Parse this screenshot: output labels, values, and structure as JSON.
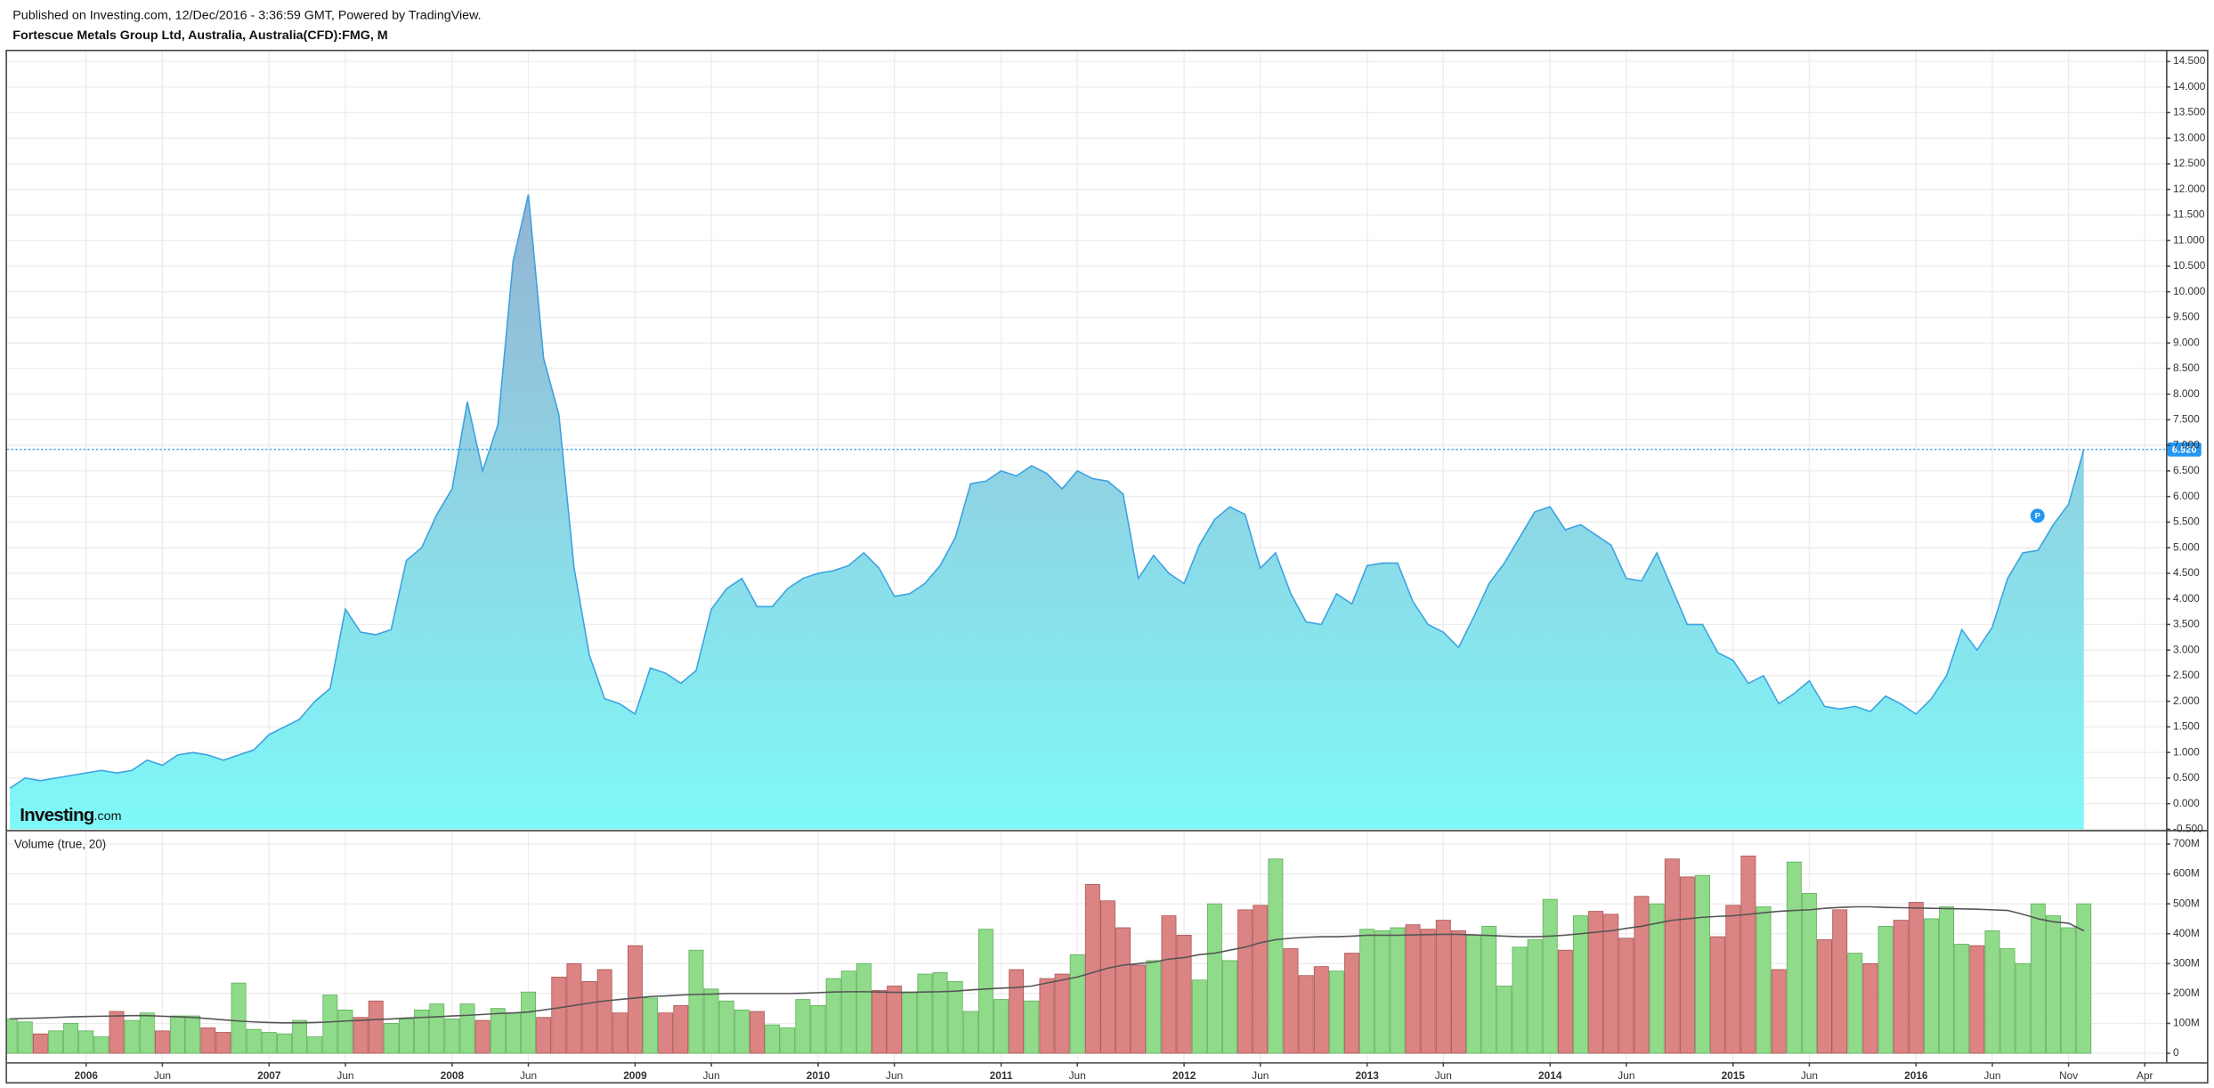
{
  "header": {
    "publisher": "Published on Investing.com, 12/Dec/2016 - 3:36:59 GMT, Powered by TradingView.",
    "title": "Fortescue Metals Group Ltd, Australia, Australia(CFD):FMG, M"
  },
  "chart_data": [
    {
      "type": "area",
      "categories": [
        null,
        null,
        null,
        null,
        null,
        "2006",
        null,
        null,
        null,
        null,
        "Jun",
        null,
        null,
        null,
        null,
        null,
        null,
        "2007",
        null,
        null,
        null,
        null,
        "Jun",
        null,
        null,
        null,
        null,
        null,
        null,
        "2008",
        null,
        null,
        null,
        null,
        "Jun",
        null,
        null,
        null,
        null,
        null,
        null,
        "2009",
        null,
        null,
        null,
        null,
        "Jun",
        null,
        null,
        null,
        null,
        null,
        null,
        "2010",
        null,
        null,
        null,
        null,
        "Jun",
        null,
        null,
        null,
        null,
        null,
        null,
        "2011",
        null,
        null,
        null,
        null,
        "Jun",
        null,
        null,
        null,
        null,
        null,
        null,
        "2012",
        null,
        null,
        null,
        null,
        "Jun",
        null,
        null,
        null,
        null,
        null,
        null,
        "2013",
        null,
        null,
        null,
        null,
        "Jun",
        null,
        null,
        null,
        null,
        null,
        null,
        "2014",
        null,
        null,
        null,
        null,
        "Jun",
        null,
        null,
        null,
        null,
        null,
        null,
        "2015",
        null,
        null,
        null,
        null,
        "Jun",
        null,
        null,
        null,
        null,
        null,
        null,
        "2016",
        null,
        null,
        null,
        null,
        "Jun",
        null,
        null,
        null,
        null,
        "Nov",
        null,
        null,
        null,
        null,
        "Apr"
      ],
      "values": [
        0.3,
        0.5,
        0.45,
        0.5,
        0.55,
        0.6,
        0.65,
        0.6,
        0.65,
        0.85,
        0.75,
        0.95,
        1.0,
        0.95,
        0.85,
        0.95,
        1.05,
        1.35,
        1.5,
        1.65,
        2.0,
        2.25,
        3.8,
        3.35,
        3.3,
        3.4,
        4.75,
        5.0,
        5.65,
        6.15,
        7.85,
        6.5,
        7.4,
        10.6,
        11.9,
        8.7,
        7.6,
        4.6,
        2.9,
        2.05,
        1.95,
        1.75,
        2.65,
        2.55,
        2.35,
        2.6,
        3.8,
        4.2,
        4.4,
        3.85,
        3.85,
        4.2,
        4.4,
        4.5,
        4.55,
        4.65,
        4.9,
        4.6,
        4.05,
        4.1,
        4.3,
        4.65,
        5.2,
        6.25,
        6.3,
        6.5,
        6.4,
        6.6,
        6.45,
        6.15,
        6.5,
        6.35,
        6.3,
        6.05,
        4.4,
        4.85,
        4.5,
        4.3,
        5.05,
        5.55,
        5.8,
        5.65,
        4.6,
        4.9,
        4.1,
        3.55,
        3.5,
        4.1,
        3.9,
        4.65,
        4.7,
        4.7,
        3.95,
        3.5,
        3.35,
        3.05,
        3.65,
        4.3,
        4.7,
        5.2,
        5.7,
        5.8,
        5.35,
        5.45,
        5.25,
        5.05,
        4.4,
        4.35,
        4.9,
        4.2,
        3.5,
        3.5,
        2.95,
        2.8,
        2.35,
        2.5,
        1.95,
        2.15,
        2.4,
        1.9,
        1.85,
        1.9,
        1.8,
        2.1,
        1.95,
        1.75,
        2.05,
        2.5,
        3.4,
        3.0,
        3.45,
        4.4,
        4.9,
        4.95,
        5.45,
        5.85,
        6.92,
        null,
        null,
        null,
        null
      ],
      "color": "#3ba3e0",
      "last_value_label": "6.920",
      "last_value_color": "#2196f3",
      "marker": "P",
      "watermark": {
        "brand": "Investing",
        "suffix": ".com"
      },
      "ylim": [
        -0.5,
        14.7
      ],
      "yticks": [
        {
          "value": -0.5,
          "label": "-0.500"
        },
        {
          "value": 0,
          "label": "0.000"
        },
        {
          "value": 0.5,
          "label": "0.500"
        },
        {
          "value": 1,
          "label": "1.000"
        },
        {
          "value": 1.5,
          "label": "1.500"
        },
        {
          "value": 2,
          "label": "2.000"
        },
        {
          "value": 2.5,
          "label": "2.500"
        },
        {
          "value": 3,
          "label": "3.000"
        },
        {
          "value": 3.5,
          "label": "3.500"
        },
        {
          "value": 4,
          "label": "4.000"
        },
        {
          "value": 4.5,
          "label": "4.500"
        },
        {
          "value": 5,
          "label": "5.000"
        },
        {
          "value": 5.5,
          "label": "5.500"
        },
        {
          "value": 6,
          "label": "6.000"
        },
        {
          "value": 6.5,
          "label": "6.500"
        },
        {
          "value": 7,
          "label": "7.000"
        },
        {
          "value": 7.5,
          "label": "7.500"
        },
        {
          "value": 8,
          "label": "8.000"
        },
        {
          "value": 8.5,
          "label": "8.500"
        },
        {
          "value": 9,
          "label": "9.000"
        },
        {
          "value": 9.5,
          "label": "9.500"
        },
        {
          "value": 10,
          "label": "10.000"
        },
        {
          "value": 10.5,
          "label": "10.500"
        },
        {
          "value": 11,
          "label": "11.000"
        },
        {
          "value": 11.5,
          "label": "11.500"
        },
        {
          "value": 12,
          "label": "12.000"
        },
        {
          "value": 12.5,
          "label": "12.500"
        },
        {
          "value": 13,
          "label": "13.000"
        },
        {
          "value": 13.5,
          "label": "13.500"
        },
        {
          "value": 14,
          "label": "14.000"
        },
        {
          "value": 14.5,
          "label": "14.500"
        }
      ],
      "grid": true
    },
    {
      "type": "bar",
      "title": "Volume (true, 20)",
      "values": [
        115,
        105,
        65,
        75,
        100,
        75,
        55,
        140,
        110,
        135,
        75,
        125,
        125,
        85,
        70,
        235,
        80,
        70,
        65,
        110,
        55,
        195,
        145,
        120,
        175,
        100,
        115,
        145,
        165,
        115,
        165,
        110,
        150,
        135,
        205,
        120,
        255,
        300,
        240,
        280,
        135,
        360,
        185,
        135,
        160,
        345,
        215,
        175,
        145,
        140,
        95,
        85,
        180,
        160,
        250,
        275,
        300,
        210,
        225,
        205,
        265,
        270,
        240,
        140,
        415,
        180,
        280,
        175,
        250,
        265,
        330,
        565,
        510,
        420,
        295,
        310,
        460,
        395,
        245,
        500,
        310,
        480,
        495,
        650,
        350,
        260,
        290,
        275,
        335,
        415,
        410,
        420,
        430,
        415,
        445,
        410,
        395,
        425,
        225,
        355,
        380,
        515,
        345,
        460,
        475,
        465,
        385,
        525,
        500,
        650,
        590,
        595,
        390,
        495,
        660,
        490,
        280,
        640,
        535,
        380,
        480,
        335,
        300,
        425,
        445,
        505,
        450,
        490,
        365,
        360,
        410,
        350,
        300,
        500,
        460,
        420,
        500,
        null,
        null,
        null,
        null
      ],
      "up_color": "#8fdb8a",
      "down_color": "#dc8383",
      "moving_average": {
        "color": "#555555",
        "values": [
          115,
          117,
          118,
          120,
          122,
          123,
          124,
          125,
          126,
          126,
          124,
          122,
          120,
          116,
          112,
          108,
          105,
          103,
          102,
          102,
          103,
          105,
          108,
          110,
          113,
          115,
          118,
          120,
          122,
          125,
          127,
          130,
          133,
          135,
          138,
          145,
          152,
          160,
          168,
          175,
          180,
          185,
          190,
          192,
          195,
          197,
          198,
          200,
          200,
          200,
          200,
          200,
          201,
          203,
          205,
          206,
          206,
          205,
          204,
          204,
          205,
          206,
          208,
          212,
          215,
          218,
          220,
          225,
          235,
          245,
          255,
          270,
          285,
          295,
          300,
          305,
          315,
          320,
          330,
          335,
          345,
          355,
          370,
          380,
          385,
          388,
          390,
          390,
          392,
          395,
          395,
          395,
          396,
          397,
          398,
          398,
          396,
          394,
          392,
          390,
          390,
          392,
          395,
          400,
          405,
          410,
          418,
          425,
          435,
          445,
          450,
          455,
          458,
          460,
          465,
          470,
          475,
          478,
          480,
          485,
          488,
          490,
          490,
          488,
          487,
          486,
          485,
          484,
          483,
          482,
          480,
          478,
          465,
          450,
          440,
          435,
          410,
          null,
          null,
          null,
          null
        ]
      },
      "ylim": [
        -30,
        740
      ],
      "yticks": [
        0,
        {
          "value": 100,
          "label": "100M"
        },
        {
          "value": 200,
          "label": "200M"
        },
        {
          "value": 300,
          "label": "300M"
        },
        {
          "value": 400,
          "label": "400M"
        },
        {
          "value": 500,
          "label": "500M"
        },
        {
          "value": 600,
          "label": "600M"
        },
        {
          "value": 700,
          "label": "700M"
        }
      ],
      "grid": true
    }
  ]
}
